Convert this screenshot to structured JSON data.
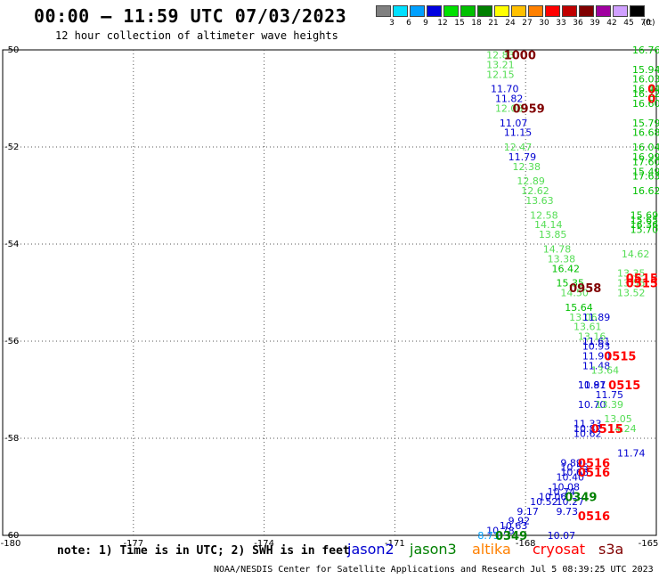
{
  "header": {
    "title": "00:00 – 11:59 UTC 07/03/2023",
    "subtitle": "12 hour collection of altimeter wave heights"
  },
  "colorbar": {
    "unit_label": "(ft)",
    "ticks": [
      "3",
      "6",
      "9",
      "12",
      "15",
      "18",
      "21",
      "24",
      "27",
      "30",
      "33",
      "36",
      "39",
      "42",
      "45",
      "70"
    ],
    "colors": [
      "#808080",
      "#00e0ff",
      "#00a0ff",
      "#0000e0",
      "#00e000",
      "#00c000",
      "#008000",
      "#ffff00",
      "#ffc000",
      "#ff8000",
      "#ff0000",
      "#c00000",
      "#800000",
      "#a000a0",
      "#d0a0ff",
      "#000000"
    ]
  },
  "footer": {
    "note": "note: 1) Time is in UTC; 2) SWH is in feet",
    "satellites": [
      {
        "name": "jason2",
        "color": "#0000d0"
      },
      {
        "name": "jason3",
        "color": "#008000"
      },
      {
        "name": "altika",
        "color": "#ff8000"
      },
      {
        "name": "cryosat",
        "color": "#ff0000"
      },
      {
        "name": "s3a",
        "color": "#800000"
      }
    ],
    "credit": "NOAA/NESDIS Center for Satellite Applications and Research  Jul  5 08:39:25 UTC 2023"
  },
  "chart_data": {
    "type": "scatter",
    "title": "00:00 – 11:59 UTC 07/03/2023",
    "subtitle": "12 hour collection of altimeter wave heights",
    "xlim": [
      -180,
      -165
    ],
    "ylim": [
      -60,
      -50
    ],
    "x_ticks": [
      "-180",
      "-177",
      "-174",
      "-171",
      "-168",
      "-165"
    ],
    "y_ticks": [
      "-50",
      "-52",
      "-54",
      "-56",
      "-58",
      "-60"
    ],
    "grid": true,
    "points": [
      {
        "x": -168.9,
        "y": -50.1,
        "label": "12.83",
        "color": "#55dd55"
      },
      {
        "x": -168.9,
        "y": -50.3,
        "label": "13.21",
        "color": "#55dd55"
      },
      {
        "x": -168.9,
        "y": -50.5,
        "label": "12.15",
        "color": "#55dd55"
      },
      {
        "x": -168.8,
        "y": -50.8,
        "label": "11.70",
        "color": "#0000d0"
      },
      {
        "x": -168.7,
        "y": -51.0,
        "label": "11.82",
        "color": "#0000d0"
      },
      {
        "x": -168.7,
        "y": -51.2,
        "label": "12.08",
        "color": "#55dd55"
      },
      {
        "x": -168.6,
        "y": -51.5,
        "label": "11.07",
        "color": "#0000d0"
      },
      {
        "x": -168.5,
        "y": -51.7,
        "label": "11.15",
        "color": "#0000d0"
      },
      {
        "x": -168.5,
        "y": -52.0,
        "label": "12.47",
        "color": "#55dd55"
      },
      {
        "x": -168.4,
        "y": -52.2,
        "label": "11.79",
        "color": "#0000d0"
      },
      {
        "x": -168.3,
        "y": -52.4,
        "label": "12.38",
        "color": "#55dd55"
      },
      {
        "x": -168.2,
        "y": -52.7,
        "label": "12.89",
        "color": "#55dd55"
      },
      {
        "x": -168.1,
        "y": -52.9,
        "label": "12.62",
        "color": "#55dd55"
      },
      {
        "x": -168.0,
        "y": -53.1,
        "label": "13.63",
        "color": "#55dd55"
      },
      {
        "x": -167.9,
        "y": -53.4,
        "label": "12.58",
        "color": "#55dd55"
      },
      {
        "x": -167.8,
        "y": -53.6,
        "label": "14.14",
        "color": "#55dd55"
      },
      {
        "x": -167.7,
        "y": -53.8,
        "label": "13.85",
        "color": "#55dd55"
      },
      {
        "x": -167.6,
        "y": -54.1,
        "label": "14.78",
        "color": "#55dd55"
      },
      {
        "x": -167.5,
        "y": -54.3,
        "label": "13.38",
        "color": "#55dd55"
      },
      {
        "x": -167.4,
        "y": -54.5,
        "label": "16.42",
        "color": "#00c000"
      },
      {
        "x": -167.3,
        "y": -54.8,
        "label": "15.35",
        "color": "#00c000"
      },
      {
        "x": -167.2,
        "y": -55.0,
        "label": "14.50",
        "color": "#55dd55"
      },
      {
        "x": -167.1,
        "y": -55.3,
        "label": "15.64",
        "color": "#00c000"
      },
      {
        "x": -167.0,
        "y": -55.5,
        "label": "13.06",
        "color": "#55dd55"
      },
      {
        "x": -166.9,
        "y": -55.7,
        "label": "13.61",
        "color": "#55dd55"
      },
      {
        "x": -166.7,
        "y": -55.5,
        "label": "11.89",
        "color": "#0000d0"
      },
      {
        "x": -166.8,
        "y": -55.9,
        "label": "13.16",
        "color": "#55dd55"
      },
      {
        "x": -166.7,
        "y": -56.0,
        "label": "11.61",
        "color": "#0000d0"
      },
      {
        "x": -166.7,
        "y": -56.1,
        "label": "10.93",
        "color": "#0000d0"
      },
      {
        "x": -166.7,
        "y": -56.3,
        "label": "11.90",
        "color": "#0000d0"
      },
      {
        "x": -166.7,
        "y": -56.5,
        "label": "11.48",
        "color": "#0000d0"
      },
      {
        "x": -166.5,
        "y": -56.6,
        "label": "13.64",
        "color": "#55dd55"
      },
      {
        "x": -166.8,
        "y": -56.9,
        "label": "10.87",
        "color": "#0000d0"
      },
      {
        "x": -166.8,
        "y": -56.9,
        "label": "11.91",
        "color": "#0000d0"
      },
      {
        "x": -166.4,
        "y": -57.1,
        "label": "11.75",
        "color": "#0000d0"
      },
      {
        "x": -166.8,
        "y": -57.3,
        "label": "10.70",
        "color": "#0000d0"
      },
      {
        "x": -166.4,
        "y": -57.3,
        "label": "13.39",
        "color": "#55dd55"
      },
      {
        "x": -166.2,
        "y": -57.6,
        "label": "13.05",
        "color": "#55dd55"
      },
      {
        "x": -166.9,
        "y": -57.7,
        "label": "11.33",
        "color": "#0000d0"
      },
      {
        "x": -166.9,
        "y": -57.8,
        "label": "10.82",
        "color": "#0000d0"
      },
      {
        "x": -166.9,
        "y": -57.9,
        "label": "10.62",
        "color": "#0000d0"
      },
      {
        "x": -166.1,
        "y": -57.8,
        "label": "14.24",
        "color": "#55dd55"
      },
      {
        "x": -165.9,
        "y": -58.3,
        "label": "11.74",
        "color": "#0000d0"
      },
      {
        "x": -167.2,
        "y": -58.5,
        "label": "9.89",
        "color": "#0000d0"
      },
      {
        "x": -167.2,
        "y": -58.6,
        "label": "10.55",
        "color": "#0000d0"
      },
      {
        "x": -167.2,
        "y": -58.7,
        "label": "10.68",
        "color": "#0000d0"
      },
      {
        "x": -167.3,
        "y": -58.8,
        "label": "10.40",
        "color": "#0000d0"
      },
      {
        "x": -167.4,
        "y": -59.0,
        "label": "10.08",
        "color": "#0000d0"
      },
      {
        "x": -167.5,
        "y": -59.1,
        "label": "10.74",
        "color": "#0000d0"
      },
      {
        "x": -167.7,
        "y": -59.2,
        "label": "10.06",
        "color": "#0000d0"
      },
      {
        "x": -167.3,
        "y": -59.3,
        "label": "10.27",
        "color": "#0000d0"
      },
      {
        "x": -167.9,
        "y": -59.3,
        "label": "10.52",
        "color": "#0000d0"
      },
      {
        "x": -168.2,
        "y": -59.5,
        "label": "9.17",
        "color": "#0000d0"
      },
      {
        "x": -167.3,
        "y": -59.5,
        "label": "9.73",
        "color": "#0000d0"
      },
      {
        "x": -168.4,
        "y": -59.7,
        "label": "9.92",
        "color": "#0000d0"
      },
      {
        "x": -168.6,
        "y": -59.8,
        "label": "10.63",
        "color": "#0000d0"
      },
      {
        "x": -168.9,
        "y": -59.9,
        "label": "10.78",
        "color": "#0000d0"
      },
      {
        "x": -169.1,
        "y": -60.0,
        "label": "8.73",
        "color": "#00a0ff"
      },
      {
        "x": -167.5,
        "y": -60.0,
        "label": "10.07",
        "color": "#0000d0"
      },
      {
        "x": -165.2,
        "y": -50.0,
        "label": "16.76",
        "color": "#00c000"
      },
      {
        "x": -165.2,
        "y": -50.4,
        "label": "15.94",
        "color": "#00c000"
      },
      {
        "x": -165.2,
        "y": -50.6,
        "label": "16.03",
        "color": "#00c000"
      },
      {
        "x": -165.2,
        "y": -50.8,
        "label": "16.44",
        "color": "#00c000"
      },
      {
        "x": -165.2,
        "y": -50.9,
        "label": "16.22",
        "color": "#00c000"
      },
      {
        "x": -165.2,
        "y": -51.1,
        "label": "16.60",
        "color": "#00c000"
      },
      {
        "x": -165.4,
        "y": -51.5,
        "label": "15.79",
        "color": "#00c000"
      },
      {
        "x": -165.4,
        "y": -51.7,
        "label": "16.68",
        "color": "#00c000"
      },
      {
        "x": -165.4,
        "y": -52.0,
        "label": "16.04",
        "color": "#00c000"
      },
      {
        "x": -165.4,
        "y": -52.2,
        "label": "16.99",
        "color": "#00c000"
      },
      {
        "x": -165.4,
        "y": -52.3,
        "label": "17.60",
        "color": "#00c000"
      },
      {
        "x": -165.4,
        "y": -52.5,
        "label": "15.49",
        "color": "#00c000"
      },
      {
        "x": -165.5,
        "y": -52.6,
        "label": "17.63",
        "color": "#00c000"
      },
      {
        "x": -165.5,
        "y": -52.9,
        "label": "16.62",
        "color": "#00c000"
      },
      {
        "x": -165.6,
        "y": -53.4,
        "label": "15.69",
        "color": "#00c000"
      },
      {
        "x": -165.6,
        "y": -53.5,
        "label": "15.65",
        "color": "#00c000"
      },
      {
        "x": -165.6,
        "y": -53.6,
        "label": "16.36",
        "color": "#00c000"
      },
      {
        "x": -165.6,
        "y": -53.7,
        "label": "15.70",
        "color": "#00c000"
      },
      {
        "x": -165.8,
        "y": -54.2,
        "label": "14.62",
        "color": "#55dd55"
      },
      {
        "x": -165.9,
        "y": -54.6,
        "label": "13.35",
        "color": "#55dd55"
      },
      {
        "x": -165.9,
        "y": -54.8,
        "label": "13.55",
        "color": "#55dd55"
      },
      {
        "x": -165.9,
        "y": -55.0,
        "label": "13.52",
        "color": "#55dd55"
      }
    ],
    "time_labels": [
      {
        "x": -168.5,
        "y": -50.1,
        "label": "1000",
        "color": "#800000"
      },
      {
        "x": -168.3,
        "y": -51.2,
        "label": "0959",
        "color": "#800000"
      },
      {
        "x": -167.0,
        "y": -54.9,
        "label": "0958",
        "color": "#800000"
      },
      {
        "x": -165.7,
        "y": -54.7,
        "label": "0515",
        "color": "#ff0000"
      },
      {
        "x": -165.7,
        "y": -54.8,
        "label": "0515",
        "color": "#ff0000"
      },
      {
        "x": -165.2,
        "y": -50.8,
        "label": "0",
        "color": "#ff0000"
      },
      {
        "x": -165.2,
        "y": -51.0,
        "label": "0",
        "color": "#ff0000"
      },
      {
        "x": -166.2,
        "y": -56.3,
        "label": "0515",
        "color": "#ff0000"
      },
      {
        "x": -166.1,
        "y": -56.9,
        "label": "0515",
        "color": "#ff0000"
      },
      {
        "x": -166.5,
        "y": -57.8,
        "label": "0515",
        "color": "#ff0000"
      },
      {
        "x": -166.8,
        "y": -58.5,
        "label": "0516",
        "color": "#ff0000"
      },
      {
        "x": -166.8,
        "y": -58.7,
        "label": "0516",
        "color": "#ff0000"
      },
      {
        "x": -167.1,
        "y": -59.2,
        "label": "0349",
        "color": "#008000"
      },
      {
        "x": -166.8,
        "y": -59.6,
        "label": "0516",
        "color": "#ff0000"
      },
      {
        "x": -168.7,
        "y": -60.0,
        "label": "0349",
        "color": "#008000"
      }
    ]
  }
}
